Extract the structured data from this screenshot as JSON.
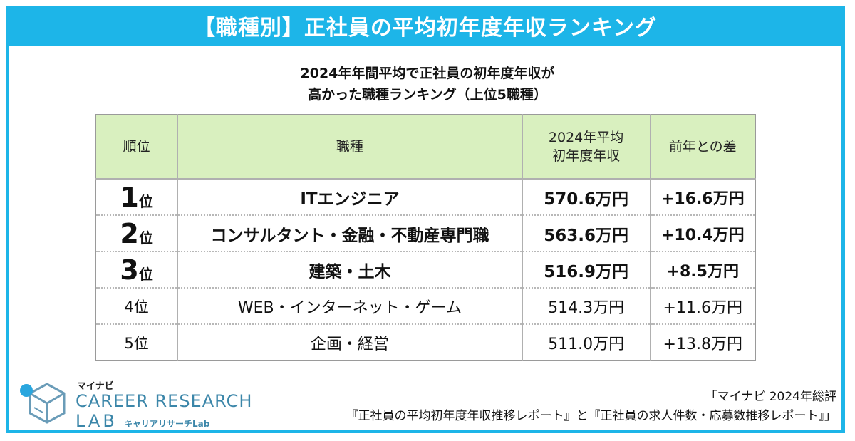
{
  "banner": {
    "title": "【職種別】正社員の平均初年度年収ランキング"
  },
  "subtitle": {
    "line1": "2024年年間平均で正社員の初年度年収が",
    "line2": "高かった職種ランキング（上位5職種）"
  },
  "table": {
    "headers": {
      "rank": "順位",
      "job": "職種",
      "salary_line1": "2024年平均",
      "salary_line2": "初年度年収",
      "diff": "前年との差"
    },
    "rows": [
      {
        "rank_num": "1",
        "rank_unit": "位",
        "job": "ITエンジニア",
        "salary": "570.6万円",
        "diff": "+16.6万円"
      },
      {
        "rank_num": "2",
        "rank_unit": "位",
        "job": "コンサルタント・金融・不動産専門職",
        "salary": "563.6万円",
        "diff": "+10.4万円"
      },
      {
        "rank_num": "3",
        "rank_unit": "位",
        "job": "建築・土木",
        "salary": "516.9万円",
        "diff": "+8.5万円"
      },
      {
        "rank_num": "4",
        "rank_unit": "位",
        "job": "WEB・インターネット・ゲーム",
        "salary": "514.3万円",
        "diff": "+11.6万円"
      },
      {
        "rank_num": "5",
        "rank_unit": "位",
        "job": "企画・経営",
        "salary": "511.0万円",
        "diff": "+13.8万円"
      }
    ]
  },
  "brand": {
    "top": "マイナビ",
    "main": "CAREER RESEARCH",
    "lab": "LAB",
    "sub": "キャリアリサーチLab"
  },
  "source": {
    "line1": "「マイナビ 2024年総評",
    "line2": "『正社員の平均初年度年収推移レポート』と『正社員の求人件数・応募数推移レポート』」"
  },
  "colors": {
    "accent": "#1db5e8",
    "header_bg": "#d9f0bf",
    "diff": "#e01818",
    "brand": "#3b86a9"
  }
}
